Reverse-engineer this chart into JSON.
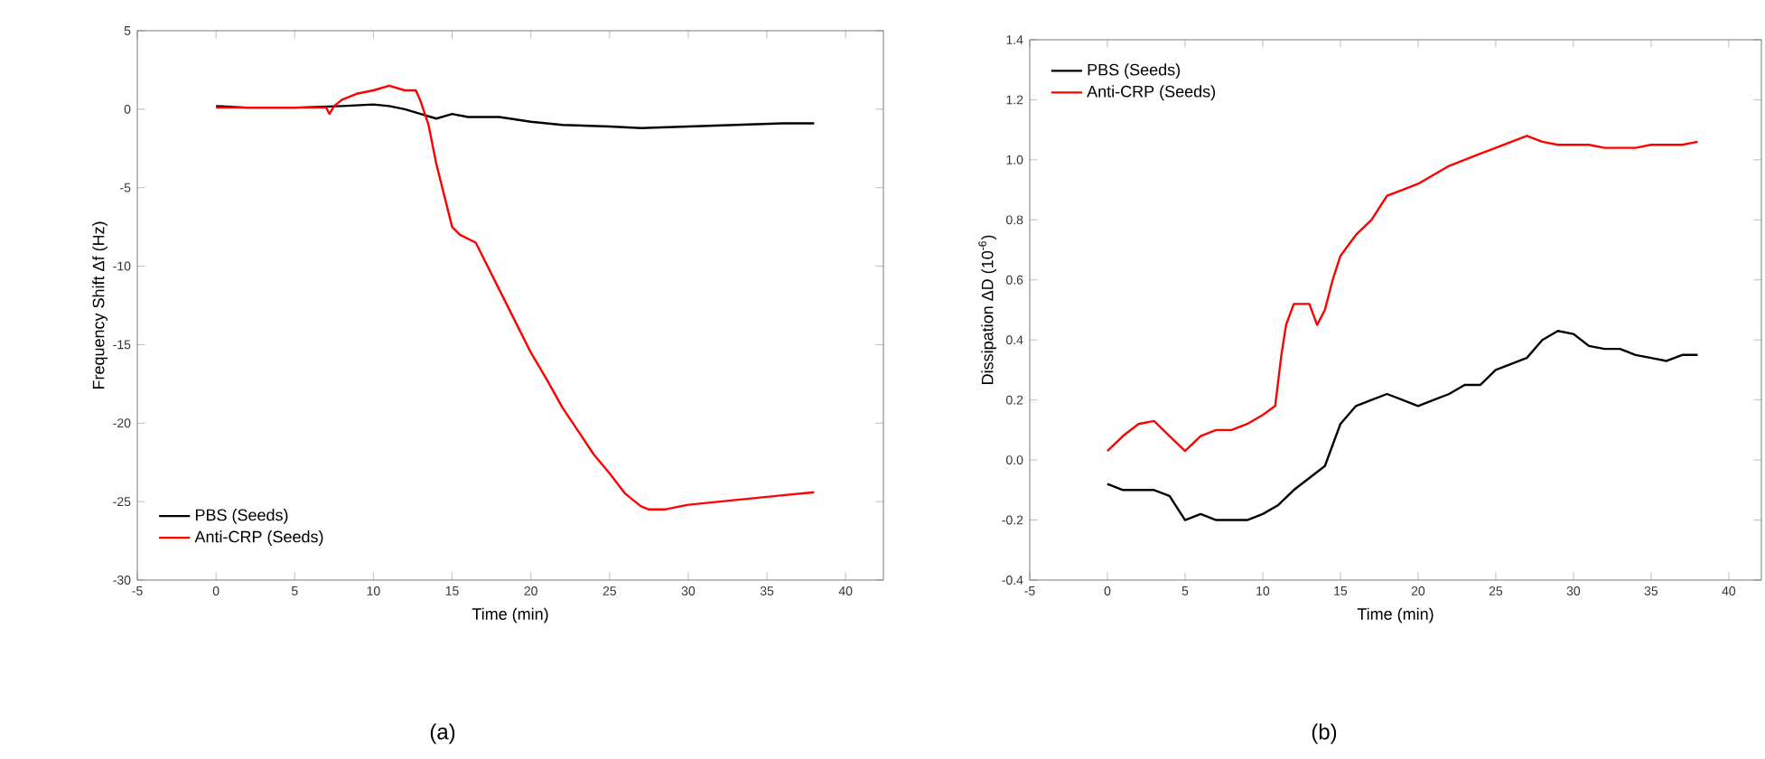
{
  "chart_data": [
    {
      "type": "line",
      "xlabel": "Time (min)",
      "ylabel": "Frequency Shift  Δf (Hz)",
      "xlim": [
        -5,
        42.4
      ],
      "ylim": [
        -30,
        5
      ],
      "xticks": [
        -5,
        0,
        5,
        10,
        15,
        20,
        25,
        30,
        35,
        40
      ],
      "yticks": [
        -30,
        -25,
        -20,
        -15,
        -10,
        -5,
        0,
        5
      ],
      "legend": "bottom left",
      "annotations": [
        "(a)"
      ],
      "series": [
        {
          "name": "PBS (Seeds)",
          "color": "#000000",
          "x": [
            0,
            2,
            5,
            8,
            10,
            11,
            12,
            13,
            14,
            15,
            16,
            18,
            20,
            22,
            25,
            27,
            30,
            33,
            36,
            38
          ],
          "values": [
            0.2,
            0.1,
            0.1,
            0.2,
            0.3,
            0.2,
            0,
            -0.3,
            -0.6,
            -0.3,
            -0.5,
            -0.5,
            -0.8,
            -1.0,
            -1.1,
            -1.2,
            -1.1,
            -1.0,
            -0.9,
            -0.9
          ]
        },
        {
          "name": "Anti-CRP (Seeds)",
          "color": "#ff0000",
          "x": [
            0,
            7,
            7.2,
            7.5,
            8,
            9,
            10,
            11,
            12,
            12.7,
            13,
            13.5,
            14,
            15,
            15.5,
            16.5,
            17,
            18,
            19,
            20,
            21,
            22,
            23,
            24,
            25,
            26,
            27,
            27.5,
            28.5,
            30,
            32,
            34,
            36,
            38
          ],
          "values": [
            0.1,
            0.1,
            -0.3,
            0.2,
            0.6,
            1.0,
            1.2,
            1.5,
            1.2,
            1.2,
            0.5,
            -1.0,
            -3.5,
            -7.5,
            -8.0,
            -8.5,
            -9.5,
            -11.5,
            -13.5,
            -15.5,
            -17.2,
            -19,
            -20.5,
            -22,
            -23.2,
            -24.5,
            -25.3,
            -25.5,
            -25.5,
            -25.2,
            -25.0,
            -24.8,
            -24.6,
            -24.4
          ]
        }
      ]
    },
    {
      "type": "line",
      "xlabel": "Time (min)",
      "ylabel": "Dissipation ΔD (10$^{-6}$)",
      "xlim": [
        -5,
        42.1
      ],
      "ylim": [
        -0.4,
        1.4
      ],
      "xticks": [
        -5,
        0,
        5,
        10,
        15,
        20,
        25,
        30,
        35,
        40
      ],
      "yticks": [
        {
          "value": -0.4,
          "label": "-0.4"
        },
        {
          "value": -0.2,
          "label": "-0.2"
        },
        {
          "value": 0,
          "label": "0.0"
        },
        {
          "value": 0.2,
          "label": "0.2"
        },
        {
          "value": 0.4,
          "label": "0.4"
        },
        {
          "value": 0.6,
          "label": "0.6"
        },
        {
          "value": 0.8,
          "label": "0.8"
        },
        {
          "value": 1.0,
          "label": "1.0"
        },
        {
          "value": 1.2,
          "label": "1.2"
        },
        {
          "value": 1.4,
          "label": "1.4"
        }
      ],
      "legend": "top left",
      "annotations": [
        "(b)"
      ],
      "series": [
        {
          "name": "PBS (Seeds)",
          "color": "#000000",
          "x": [
            0,
            1,
            2,
            3,
            4,
            5,
            6,
            7,
            8,
            9,
            10,
            11,
            12,
            13,
            14,
            14.5,
            15,
            16,
            17,
            18,
            19,
            20,
            21,
            22,
            23,
            24,
            25,
            26,
            27,
            28,
            29,
            30,
            31,
            32,
            33,
            34,
            35,
            36,
            37,
            38
          ],
          "values": [
            -0.08,
            -0.1,
            -0.1,
            -0.1,
            -0.12,
            -0.2,
            -0.18,
            -0.2,
            -0.2,
            -0.2,
            -0.18,
            -0.15,
            -0.1,
            -0.06,
            -0.02,
            0.05,
            0.12,
            0.18,
            0.2,
            0.22,
            0.2,
            0.18,
            0.2,
            0.22,
            0.25,
            0.25,
            0.3,
            0.32,
            0.34,
            0.4,
            0.43,
            0.42,
            0.38,
            0.37,
            0.37,
            0.35,
            0.34,
            0.33,
            0.35,
            0.35
          ]
        },
        {
          "name": "Anti-CRP (Seeds)",
          "color": "#ff0000",
          "x": [
            0,
            1,
            2,
            3,
            4,
            5,
            6,
            7,
            8,
            9,
            10,
            10.8,
            11.2,
            11.5,
            12,
            13,
            13.5,
            14,
            14.5,
            15,
            16,
            17,
            18,
            19,
            20,
            21,
            22,
            23,
            24,
            25,
            26,
            27,
            28,
            29,
            30,
            31,
            32,
            33,
            34,
            35,
            36,
            37,
            38
          ],
          "values": [
            0.03,
            0.08,
            0.12,
            0.13,
            0.08,
            0.03,
            0.08,
            0.1,
            0.1,
            0.12,
            0.15,
            0.18,
            0.35,
            0.45,
            0.52,
            0.52,
            0.45,
            0.5,
            0.6,
            0.68,
            0.75,
            0.8,
            0.88,
            0.9,
            0.92,
            0.95,
            0.98,
            1.0,
            1.02,
            1.04,
            1.06,
            1.08,
            1.06,
            1.05,
            1.05,
            1.05,
            1.04,
            1.04,
            1.04,
            1.05,
            1.05,
            1.05,
            1.06
          ]
        }
      ]
    }
  ]
}
